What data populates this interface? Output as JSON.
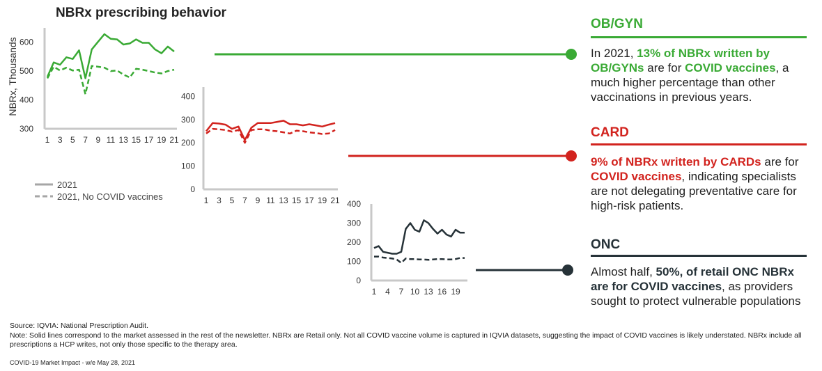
{
  "title": "NBRx prescribing behavior",
  "colors": {
    "obgyn": "#3aaa35",
    "card": "#d2231e",
    "onc": "#263238",
    "axis": "#c8c8c8",
    "legend": "#a6a6a6"
  },
  "legend": {
    "solid_label": "2021",
    "dashed_label": "2021, No COVID vaccines"
  },
  "chart_data": [
    {
      "type": "line",
      "ylabel": "NBRx, Thousands",
      "ylim": [
        300,
        650
      ],
      "yticks": [
        300,
        400,
        500,
        600
      ],
      "xtick_labels": [
        "1",
        "3",
        "5",
        "7",
        "9",
        "11",
        "13",
        "15",
        "17",
        "19",
        "21"
      ],
      "x": [
        1,
        2,
        3,
        4,
        5,
        6,
        7,
        8,
        9,
        10,
        11,
        12,
        13,
        14,
        15,
        16,
        17,
        18,
        19,
        20,
        21
      ],
      "series": [
        {
          "name": "2021",
          "style": "solid",
          "values": [
            480,
            530,
            522,
            548,
            542,
            572,
            475,
            575,
            602,
            628,
            612,
            610,
            592,
            596,
            610,
            598,
            598,
            575,
            562,
            585,
            568
          ]
        },
        {
          "name": "2021, No COVID vaccines",
          "style": "dashed",
          "values": [
            475,
            515,
            502,
            512,
            502,
            505,
            420,
            518,
            515,
            512,
            500,
            502,
            488,
            478,
            508,
            505,
            500,
            495,
            492,
            500,
            505
          ]
        }
      ]
    },
    {
      "type": "line",
      "ylim": [
        0,
        440
      ],
      "yticks": [
        0,
        100,
        200,
        300,
        400
      ],
      "xtick_labels": [
        "1",
        "3",
        "5",
        "7",
        "9",
        "11",
        "13",
        "15",
        "17",
        "19",
        "21"
      ],
      "x": [
        1,
        2,
        3,
        4,
        5,
        6,
        7,
        8,
        9,
        10,
        11,
        12,
        13,
        14,
        15,
        16,
        17,
        18,
        19,
        20,
        21
      ],
      "series": [
        {
          "name": "2021",
          "style": "solid",
          "values": [
            250,
            285,
            283,
            278,
            260,
            270,
            212,
            265,
            285,
            285,
            285,
            290,
            295,
            280,
            280,
            275,
            280,
            275,
            270,
            278,
            285
          ]
        },
        {
          "name": "2021, No COVID vaccines",
          "style": "dashed",
          "values": [
            240,
            260,
            258,
            255,
            248,
            255,
            200,
            255,
            258,
            258,
            252,
            250,
            245,
            240,
            252,
            250,
            245,
            242,
            238,
            240,
            255
          ]
        }
      ]
    },
    {
      "type": "line",
      "ylim": [
        0,
        400
      ],
      "yticks": [
        0,
        100,
        200,
        300,
        400
      ],
      "xtick_labels": [
        "1",
        "4",
        "7",
        "10",
        "13",
        "16",
        "19"
      ],
      "x": [
        1,
        2,
        3,
        4,
        5,
        6,
        7,
        8,
        9,
        10,
        11,
        12,
        13,
        14,
        15,
        16,
        17,
        18,
        19,
        20,
        21
      ],
      "series": [
        {
          "name": "2021",
          "style": "solid",
          "values": [
            170,
            180,
            150,
            145,
            140,
            140,
            150,
            270,
            300,
            265,
            255,
            315,
            300,
            270,
            245,
            265,
            240,
            230,
            265,
            250,
            250
          ]
        },
        {
          "name": "2021, No COVID vaccines",
          "style": "dashed",
          "values": [
            125,
            125,
            120,
            118,
            115,
            110,
            92,
            115,
            112,
            112,
            110,
            110,
            108,
            110,
            112,
            112,
            110,
            110,
            112,
            118,
            118
          ]
        }
      ]
    }
  ],
  "panels": {
    "obgyn": {
      "title": "OB/GYN",
      "t1": "In 2021, ",
      "h1": "13% of NBRx written by OB/GYNs",
      "t2": " are for ",
      "h2": "COVID vaccines",
      "t3": ", a much higher percentage than other vaccinations in previous years."
    },
    "card": {
      "title": "CARD",
      "h1": "9% of NBRx written by CARDs",
      "t1": " are for ",
      "h2": "COVID vaccines",
      "t2": ", indicating specialists are not delegating preventative care for high-risk patients."
    },
    "onc": {
      "title": "ONC",
      "t1": "Almost half, ",
      "h1": "50%, of retail ONC NBRx are for COVID vaccines",
      "t2": ", as providers sought to protect vulnerable populations"
    }
  },
  "source": "Source: IQVIA: National Prescription Audit.",
  "note": "Note: Solid lines correspond to the market assessed in the rest of the newsletter. NBRx are Retail only. Not all COVID vaccine volume is captured in IQVIA datasets, suggesting the impact of COVID vaccines is likely understated. NBRx include all prescriptions a HCP writes, not only those specific to the therapy area.",
  "footer": "COVID-19 Market Impact - w/e May 28, 2021"
}
